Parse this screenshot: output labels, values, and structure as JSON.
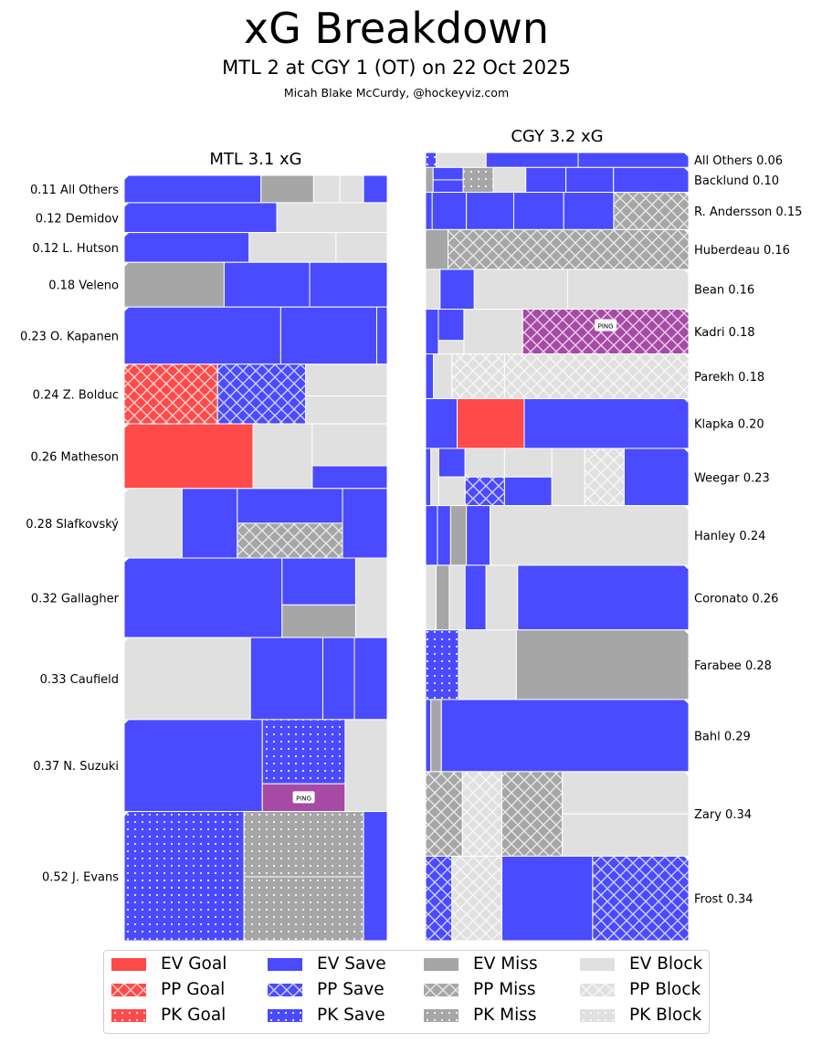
{
  "title": "xG Breakdown",
  "subtitle": "MTL 2 at CGY 1 (OT) on 22 Oct 2025",
  "credit": "Micah Blake McCurdy, @hockeyviz.com",
  "colors": {
    "goal": "#ff4a4a",
    "save": "#4a4aff",
    "miss": "#a6a6a6",
    "block": "#e0e0e0",
    "ping": "#a64aa6"
  },
  "legend": [
    {
      "label": "EV Goal",
      "outcome": "goal",
      "strength": "EV"
    },
    {
      "label": "PP Goal",
      "outcome": "goal",
      "strength": "PP"
    },
    {
      "label": "PK Goal",
      "outcome": "goal",
      "strength": "PK"
    },
    {
      "label": "EV Save",
      "outcome": "save",
      "strength": "EV"
    },
    {
      "label": "PP Save",
      "outcome": "save",
      "strength": "PP"
    },
    {
      "label": "PK Save",
      "outcome": "save",
      "strength": "PK"
    },
    {
      "label": "EV Miss",
      "outcome": "miss",
      "strength": "EV"
    },
    {
      "label": "PP Miss",
      "outcome": "miss",
      "strength": "PP"
    },
    {
      "label": "PK Miss",
      "outcome": "miss",
      "strength": "PK"
    },
    {
      "label": "EV Block",
      "outcome": "block",
      "strength": "EV"
    },
    {
      "label": "PP Block",
      "outcome": "block",
      "strength": "PP"
    },
    {
      "label": "PK Block",
      "outcome": "block",
      "strength": "PK"
    }
  ],
  "ping_label": "PING",
  "chart_data": {
    "type": "treemap",
    "title": "xG Breakdown",
    "teams": [
      {
        "name": "MTL",
        "title": "MTL 3.1 xG",
        "total_xg": 3.1,
        "label_side": "left",
        "players": [
          {
            "name": "All Others",
            "xg": 0.11,
            "label": "0.11 All Others",
            "shots": [
              {
                "o": "save",
                "s": "EV",
                "w": 0.52
              },
              {
                "o": "miss",
                "s": "EV",
                "w": 0.2
              },
              {
                "o": "block",
                "s": "EV",
                "w": 0.1
              },
              {
                "o": "block",
                "s": "EV",
                "w": 0.09
              },
              {
                "o": "save",
                "s": "EV",
                "w": 0.09
              }
            ]
          },
          {
            "name": "Demidov",
            "xg": 0.12,
            "label": "0.12 Demidov",
            "shots": [
              {
                "o": "save",
                "s": "EV",
                "w": 0.58
              },
              {
                "o": "block",
                "s": "EV",
                "w": 0.42
              }
            ]
          },
          {
            "name": "L. Hutson",
            "xg": 0.12,
            "label": "0.12 L. Hutson",
            "shots": [
              {
                "o": "save",
                "s": "EV",
                "w": 0.475
              },
              {
                "o": "block",
                "s": "EV",
                "w": 0.33
              },
              {
                "o": "block",
                "s": "EV",
                "w": 0.195
              }
            ]
          },
          {
            "name": "Veleno",
            "xg": 0.18,
            "label": "0.18 Veleno",
            "shots": [
              {
                "o": "miss",
                "s": "EV",
                "w": 0.38
              },
              {
                "o": "save",
                "s": "EV",
                "w": 0.325
              },
              {
                "o": "save",
                "s": "EV",
                "w": 0.295
              }
            ]
          },
          {
            "name": "O. Kapanen",
            "xg": 0.23,
            "label": "0.23 O. Kapanen",
            "shots": [
              {
                "o": "save",
                "s": "EV",
                "w": 0.595
              },
              {
                "o": "save",
                "s": "EV",
                "w": 0.365
              },
              {
                "o": "save",
                "s": "EV",
                "w": 0.04
              }
            ]
          },
          {
            "name": "Z. Bolduc",
            "xg": 0.24,
            "label": "0.24 Z. Bolduc",
            "shots": [
              {
                "o": "goal",
                "s": "PP",
                "w": 0.355
              },
              {
                "o": "save",
                "s": "PP",
                "w": 0.335
              },
              {
                "o": "block",
                "s": "EV",
                "w": 0.165
              },
              {
                "o": "block",
                "s": "EV",
                "w": 0.145
              }
            ]
          },
          {
            "name": "Matheson",
            "xg": 0.26,
            "label": "0.26 Matheson",
            "shots": [
              {
                "o": "goal",
                "s": "EV",
                "w": 0.49
              },
              {
                "o": "block",
                "s": "EV",
                "w": 0.225
              },
              {
                "o": "block",
                "s": "EV",
                "w": 0.185
              },
              {
                "o": "save",
                "s": "EV",
                "w": 0.1
              }
            ]
          },
          {
            "name": "Slafkovský",
            "xg": 0.28,
            "label": "0.28 Slafkovský",
            "shots": [
              {
                "o": "block",
                "s": "EV",
                "w": 0.22
              },
              {
                "o": "save",
                "s": "EV",
                "w": 0.21
              },
              {
                "o": "save",
                "s": "EV",
                "w": 0.2
              },
              {
                "o": "miss",
                "s": "PP",
                "w": 0.2
              },
              {
                "o": "save",
                "s": "EV",
                "w": 0.17
              }
            ]
          },
          {
            "name": "Gallagher",
            "xg": 0.32,
            "label": "0.32 Gallagher",
            "shots": [
              {
                "o": "save",
                "s": "EV",
                "w": 0.6
              },
              {
                "o": "save",
                "s": "EV",
                "w": 0.165
              },
              {
                "o": "miss",
                "s": "EV",
                "w": 0.115
              },
              {
                "o": "block",
                "s": "EV",
                "w": 0.12
              }
            ]
          },
          {
            "name": "Caufield",
            "xg": 0.33,
            "label": "0.33 Caufield",
            "shots": [
              {
                "o": "block",
                "s": "EV",
                "w": 0.48
              },
              {
                "o": "save",
                "s": "EV",
                "w": 0.275
              },
              {
                "o": "save",
                "s": "EV",
                "w": 0.12
              },
              {
                "o": "save",
                "s": "EV",
                "w": 0.125
              }
            ]
          },
          {
            "name": "N. Suzuki",
            "xg": 0.37,
            "label": "0.37 N. Suzuki",
            "shots": [
              {
                "o": "save",
                "s": "EV",
                "w": 0.525
              },
              {
                "o": "save",
                "s": "PK",
                "w": 0.22
              },
              {
                "o": "ping",
                "s": "EV",
                "w": 0.095,
                "ping": true
              },
              {
                "o": "block",
                "s": "EV",
                "w": 0.16
              }
            ]
          },
          {
            "name": "J. Evans",
            "xg": 0.52,
            "label": "0.52 J. Evans",
            "shots": [
              {
                "o": "save",
                "s": "PK",
                "w": 0.455
              },
              {
                "o": "miss",
                "s": "PK",
                "w": 0.23
              },
              {
                "o": "miss",
                "s": "PK",
                "w": 0.225
              },
              {
                "o": "save",
                "s": "EV",
                "w": 0.09
              }
            ]
          }
        ]
      },
      {
        "name": "CGY",
        "title": "CGY 3.2 xG",
        "total_xg": 3.2,
        "label_side": "right",
        "players": [
          {
            "name": "All Others",
            "xg": 0.06,
            "label": "All Others 0.06",
            "shots": [
              {
                "o": "save",
                "s": "PK",
                "w": 0.04
              },
              {
                "o": "block",
                "s": "EV",
                "w": 0.19
              },
              {
                "o": "save",
                "s": "EV",
                "w": 0.35
              },
              {
                "o": "save",
                "s": "EV",
                "w": 0.42
              }
            ]
          },
          {
            "name": "Backlund",
            "xg": 0.1,
            "label": "Backlund 0.10",
            "shots": [
              {
                "o": "miss",
                "s": "EV",
                "w": 0.03
              },
              {
                "o": "save",
                "s": "EV",
                "w": 0.06
              },
              {
                "o": "save",
                "s": "EV",
                "w": 0.06
              },
              {
                "o": "miss",
                "s": "PK",
                "w": 0.12
              },
              {
                "o": "block",
                "s": "EV",
                "w": 0.13
              },
              {
                "o": "save",
                "s": "EV",
                "w": 0.16
              },
              {
                "o": "save",
                "s": "EV",
                "w": 0.19
              },
              {
                "o": "save",
                "s": "EV",
                "w": 0.3
              }
            ]
          },
          {
            "name": "R. Andersson",
            "xg": 0.15,
            "label": "R. Andersson 0.15",
            "shots": [
              {
                "o": "save",
                "s": "EV",
                "w": 0.025
              },
              {
                "o": "save",
                "s": "EV",
                "w": 0.13
              },
              {
                "o": "save",
                "s": "EV",
                "w": 0.18
              },
              {
                "o": "save",
                "s": "EV",
                "w": 0.19
              },
              {
                "o": "save",
                "s": "EV",
                "w": 0.19
              },
              {
                "o": "miss",
                "s": "PP",
                "w": 0.285
              }
            ]
          },
          {
            "name": "Huberdeau",
            "xg": 0.16,
            "label": "Huberdeau 0.16",
            "shots": [
              {
                "o": "miss",
                "s": "EV",
                "w": 0.085
              },
              {
                "o": "miss",
                "s": "PP",
                "w": 0.915
              }
            ]
          },
          {
            "name": "Bean",
            "xg": 0.16,
            "label": "Bean 0.16",
            "shots": [
              {
                "o": "block",
                "s": "EV",
                "w": 0.055
              },
              {
                "o": "save",
                "s": "EV",
                "w": 0.13
              },
              {
                "o": "block",
                "s": "EV",
                "w": 0.355
              },
              {
                "o": "block",
                "s": "EV",
                "w": 0.46
              }
            ]
          },
          {
            "name": "Kadri",
            "xg": 0.18,
            "label": "Kadri 0.18",
            "shots": [
              {
                "o": "save",
                "s": "EV",
                "w": 0.05
              },
              {
                "o": "save",
                "s": "EV",
                "w": 0.07
              },
              {
                "o": "block",
                "s": "EV",
                "w": 0.03
              },
              {
                "o": "block",
                "s": "EV",
                "w": 0.23
              },
              {
                "o": "ping",
                "s": "PP",
                "w": 0.65,
                "ping": true
              }
            ]
          },
          {
            "name": "Parekh",
            "xg": 0.18,
            "label": "Parekh 0.18",
            "shots": [
              {
                "o": "save",
                "s": "EV",
                "w": 0.03
              },
              {
                "o": "block",
                "s": "EV",
                "w": 0.07
              },
              {
                "o": "block",
                "s": "PP",
                "w": 0.2
              },
              {
                "o": "block",
                "s": "PP",
                "w": 0.7
              }
            ]
          },
          {
            "name": "Klapka",
            "xg": 0.2,
            "label": "Klapka 0.20",
            "shots": [
              {
                "o": "save",
                "s": "EV",
                "w": 0.12
              },
              {
                "o": "goal",
                "s": "EV",
                "w": 0.255
              },
              {
                "o": "save",
                "s": "EV",
                "w": 0.625
              }
            ]
          },
          {
            "name": "Weegar",
            "xg": 0.23,
            "label": "Weegar 0.23",
            "shots": [
              {
                "o": "save",
                "s": "EV",
                "w": 0.02
              },
              {
                "o": "block",
                "s": "EV",
                "w": 0.03
              },
              {
                "o": "save",
                "s": "EV",
                "w": 0.05
              },
              {
                "o": "block",
                "s": "EV",
                "w": 0.05
              },
              {
                "o": "block",
                "s": "EV",
                "w": 0.075
              },
              {
                "o": "save",
                "s": "PP",
                "w": 0.075
              },
              {
                "o": "block",
                "s": "EV",
                "w": 0.09
              },
              {
                "o": "save",
                "s": "EV",
                "w": 0.09
              },
              {
                "o": "block",
                "s": "EV",
                "w": 0.125
              },
              {
                "o": "block",
                "s": "PP",
                "w": 0.15
              },
              {
                "o": "save",
                "s": "EV",
                "w": 0.245
              }
            ]
          },
          {
            "name": "Hanley",
            "xg": 0.24,
            "label": "Hanley 0.24",
            "shots": [
              {
                "o": "save",
                "s": "EV",
                "w": 0.045
              },
              {
                "o": "save",
                "s": "EV",
                "w": 0.05
              },
              {
                "o": "miss",
                "s": "EV",
                "w": 0.06
              },
              {
                "o": "save",
                "s": "EV",
                "w": 0.09
              },
              {
                "o": "block",
                "s": "EV",
                "w": 0.755
              }
            ]
          },
          {
            "name": "Coronato",
            "xg": 0.26,
            "label": "Coronato 0.26",
            "shots": [
              {
                "o": "block",
                "s": "EV",
                "w": 0.04
              },
              {
                "o": "miss",
                "s": "EV",
                "w": 0.05
              },
              {
                "o": "block",
                "s": "EV",
                "w": 0.06
              },
              {
                "o": "save",
                "s": "EV",
                "w": 0.08
              },
              {
                "o": "block",
                "s": "EV",
                "w": 0.12
              },
              {
                "o": "save",
                "s": "EV",
                "w": 0.65
              }
            ]
          },
          {
            "name": "Farabee",
            "xg": 0.28,
            "label": "Farabee 0.28",
            "shots": [
              {
                "o": "save",
                "s": "PK",
                "w": 0.125
              },
              {
                "o": "block",
                "s": "EV",
                "w": 0.22
              },
              {
                "o": "miss",
                "s": "EV",
                "w": 0.655
              }
            ]
          },
          {
            "name": "Bahl",
            "xg": 0.29,
            "label": "Bahl 0.29",
            "shots": [
              {
                "o": "save",
                "s": "EV",
                "w": 0.02
              },
              {
                "o": "miss",
                "s": "EV",
                "w": 0.04
              },
              {
                "o": "save",
                "s": "EV",
                "w": 0.94
              }
            ]
          },
          {
            "name": "Zary",
            "xg": 0.34,
            "label": "Zary 0.34",
            "shots": [
              {
                "o": "miss",
                "s": "PP",
                "w": 0.14
              },
              {
                "o": "block",
                "s": "PP",
                "w": 0.15
              },
              {
                "o": "miss",
                "s": "PP",
                "w": 0.23
              },
              {
                "o": "block",
                "s": "EV",
                "w": 0.24
              },
              {
                "o": "block",
                "s": "EV",
                "w": 0.24
              }
            ]
          },
          {
            "name": "Frost",
            "xg": 0.34,
            "label": "Frost 0.34",
            "shots": [
              {
                "o": "save",
                "s": "PP",
                "w": 0.1
              },
              {
                "o": "block",
                "s": "PP",
                "w": 0.19
              },
              {
                "o": "save",
                "s": "EV",
                "w": 0.345
              },
              {
                "o": "save",
                "s": "PP",
                "w": 0.365
              }
            ]
          }
        ]
      }
    ]
  }
}
